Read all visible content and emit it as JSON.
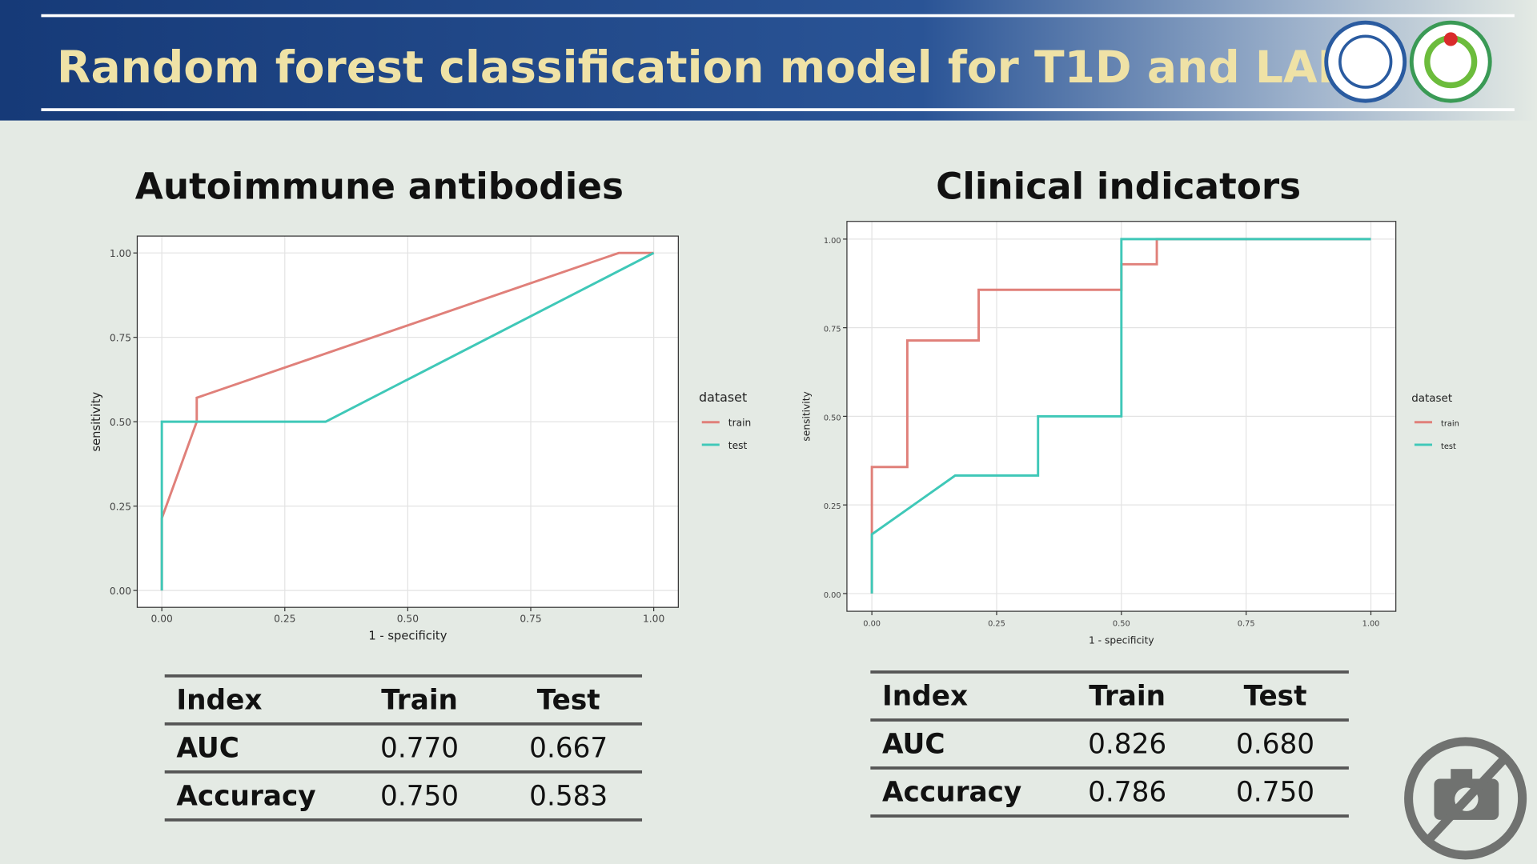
{
  "header": {
    "title": "Random forest classification model for T1D and LADA"
  },
  "chart_data": [
    {
      "type": "line",
      "title": "Autoimmune antibodies",
      "x_label": "1 - specificity",
      "y_label": "sensitivity",
      "legend_title": "dataset",
      "legend": "right",
      "grid": true,
      "xlim": [
        -0.05,
        1.05
      ],
      "ylim": [
        -0.05,
        1.05
      ],
      "xticks": [
        {
          "value": 0,
          "label": "0.00"
        },
        {
          "value": 0.25,
          "label": "0.25"
        },
        {
          "value": 0.5,
          "label": "0.50"
        },
        {
          "value": 0.75,
          "label": "0.75"
        },
        {
          "value": 1,
          "label": "1.00"
        }
      ],
      "yticks": [
        {
          "value": 0,
          "label": "0.00"
        },
        {
          "value": 0.25,
          "label": "0.25"
        },
        {
          "value": 0.5,
          "label": "0.50"
        },
        {
          "value": 0.75,
          "label": "0.75"
        },
        {
          "value": 1,
          "label": "1.00"
        }
      ],
      "series": [
        {
          "name": "train",
          "color": "#e0807a",
          "x": [
            0,
            0,
            0.071,
            0.071,
            0.929,
            1
          ],
          "values": [
            0,
            0.214,
            0.5,
            0.571,
            1,
            1
          ]
        },
        {
          "name": "test",
          "color": "#3fc8b8",
          "x": [
            0,
            0,
            0.333,
            1
          ],
          "values": [
            0,
            0.5,
            0.5,
            1
          ]
        }
      ]
    },
    {
      "type": "line",
      "title": "Clinical indicators",
      "x_label": "1 - specificity",
      "y_label": "sensitivity",
      "legend_title": "dataset",
      "legend": "right",
      "grid": true,
      "xlim": [
        -0.05,
        1.05
      ],
      "ylim": [
        -0.05,
        1.05
      ],
      "xticks": [
        {
          "value": 0,
          "label": "0.00"
        },
        {
          "value": 0.25,
          "label": "0.25"
        },
        {
          "value": 0.5,
          "label": "0.50"
        },
        {
          "value": 0.75,
          "label": "0.75"
        },
        {
          "value": 1,
          "label": "1.00"
        }
      ],
      "yticks": [
        {
          "value": 0,
          "label": "0.00"
        },
        {
          "value": 0.25,
          "label": "0.25"
        },
        {
          "value": 0.5,
          "label": "0.50"
        },
        {
          "value": 0.75,
          "label": "0.75"
        },
        {
          "value": 1,
          "label": "1.00"
        }
      ],
      "series": [
        {
          "name": "train",
          "color": "#e0807a",
          "x": [
            0,
            0,
            0.071,
            0.071,
            0.214,
            0.214,
            0.5,
            0.5,
            0.571,
            0.571,
            1
          ],
          "values": [
            0,
            0.357,
            0.357,
            0.714,
            0.714,
            0.857,
            0.857,
            0.929,
            0.929,
            1,
            1
          ]
        },
        {
          "name": "test",
          "color": "#3fc8b8",
          "x": [
            0,
            0,
            0.167,
            0.333,
            0.333,
            0.5,
            0.5,
            1
          ],
          "values": [
            0,
            0.167,
            0.333,
            0.333,
            0.5,
            0.5,
            1,
            1
          ]
        }
      ]
    }
  ],
  "tables": [
    {
      "header": [
        "Index",
        "Train",
        "Test"
      ],
      "rows": [
        [
          "AUC",
          "0.770",
          "0.667"
        ],
        [
          "Accuracy",
          "0.750",
          "0.583"
        ]
      ]
    },
    {
      "header": [
        "Index",
        "Train",
        "Test"
      ],
      "rows": [
        [
          "AUC",
          "0.826",
          "0.680"
        ],
        [
          "Accuracy",
          "0.786",
          "0.750"
        ]
      ]
    }
  ]
}
